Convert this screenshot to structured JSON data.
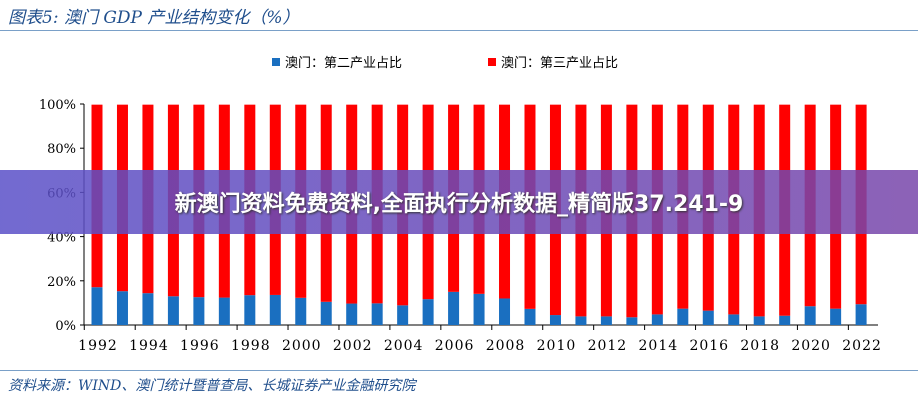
{
  "header": {
    "title": "图表5:  澳门 GDP 产业结构变化（%）"
  },
  "footer": {
    "source": "资料来源：WIND、澳门统计暨普查局、长城证券产业金融研究院"
  },
  "banner": {
    "text": "新澳门资料免费资料,全面执行分析数据_精简版37.241-9"
  },
  "chart_data": {
    "type": "bar",
    "stacked": true,
    "categories": [
      "1992",
      "1993",
      "1994",
      "1995",
      "1996",
      "1997",
      "1998",
      "1999",
      "2000",
      "2001",
      "2002",
      "2003",
      "2004",
      "2005",
      "2006",
      "2007",
      "2008",
      "2009",
      "2010",
      "2011",
      "2012",
      "2013",
      "2014",
      "2015",
      "2016",
      "2017",
      "2018",
      "2019",
      "2020",
      "2021",
      "2022"
    ],
    "xticks": [
      "1992",
      "1994",
      "1996",
      "1998",
      "2000",
      "2002",
      "2004",
      "2006",
      "2008",
      "2010",
      "2012",
      "2014",
      "2016",
      "2018",
      "2020",
      "2022"
    ],
    "yticks": [
      "0%",
      "20%",
      "40%",
      "60%",
      "80%",
      "100%"
    ],
    "ylim": [
      0,
      100
    ],
    "legend_position": "top",
    "series": [
      {
        "name": "澳门：第二产业占比",
        "color": "#1a6fc0",
        "values": [
          17.1,
          15.3,
          14.4,
          13.0,
          12.6,
          12.4,
          13.5,
          13.6,
          12.3,
          10.5,
          9.7,
          9.8,
          8.9,
          11.7,
          15.0,
          14.1,
          12.0,
          7.3,
          4.5,
          3.9,
          3.9,
          3.5,
          4.8,
          7.4,
          6.5,
          4.8,
          3.9,
          4.2,
          8.5,
          7.4,
          9.4
        ]
      },
      {
        "name": "澳门：第三产业占比",
        "color": "#ff0000",
        "values": [
          82.6,
          84.4,
          85.3,
          86.7,
          87.1,
          87.3,
          86.2,
          86.1,
          87.4,
          89.2,
          90.0,
          89.9,
          90.8,
          88.0,
          84.7,
          85.6,
          87.7,
          92.4,
          95.2,
          95.8,
          95.8,
          96.2,
          94.9,
          92.3,
          93.2,
          94.9,
          95.8,
          95.5,
          91.2,
          92.3,
          90.3
        ]
      }
    ]
  }
}
